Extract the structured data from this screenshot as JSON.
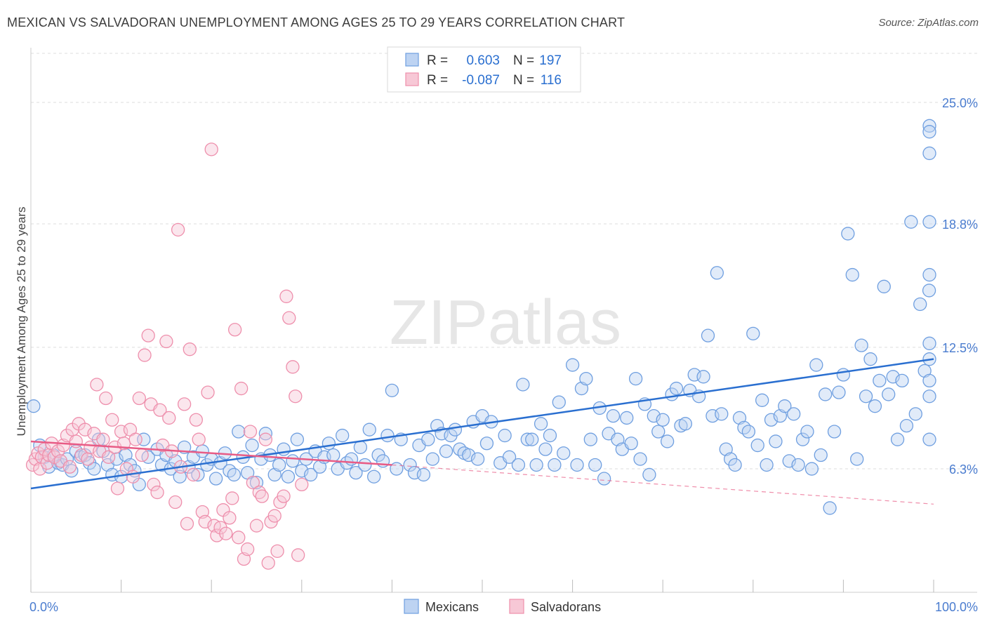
{
  "chart_data": {
    "type": "scatter",
    "title": "MEXICAN VS SALVADORAN UNEMPLOYMENT AMONG AGES 25 TO 29 YEARS CORRELATION CHART",
    "source": "Source: ZipAtlas.com",
    "ylabel": "Unemployment Among Ages 25 to 29 years",
    "xlabel": "",
    "xlim": [
      0,
      100
    ],
    "ylim": [
      0,
      27.5
    ],
    "x_tick_labels": [
      "0.0%",
      "100.0%"
    ],
    "y_ticks": [
      6.3,
      12.5,
      18.8,
      25.0
    ],
    "y_tick_labels": [
      "6.3%",
      "12.5%",
      "18.8%",
      "25.0%"
    ],
    "grid": true,
    "legend_position": "top-center",
    "watermark": "ZIPatlas",
    "stats": [
      {
        "r_label": "R =",
        "r_value": "0.603",
        "n_label": "N =",
        "n_value": "197"
      },
      {
        "r_label": "R =",
        "r_value": "-0.087",
        "n_label": "N =",
        "n_value": "116"
      }
    ],
    "colors": {
      "mexicans": "#6f9fe0",
      "mexicans_fill": "#bdd3f2",
      "mexicans_line": "#2a6fd0",
      "salvadorans": "#ee8fac",
      "salvadorans_fill": "#f7c8d6",
      "salvadorans_line": "#e85c86",
      "axis_text": "#4a7ccf"
    },
    "series": [
      {
        "name": "Mexicans",
        "trend": [
          [
            0,
            5.3
          ],
          [
            100,
            11.9
          ]
        ],
        "points": [
          [
            0.3,
            9.5
          ],
          [
            1,
            7.5
          ],
          [
            1.5,
            6.9
          ],
          [
            2,
            6.4
          ],
          [
            2.5,
            7.0
          ],
          [
            3,
            6.6
          ],
          [
            3.5,
            6.5
          ],
          [
            4,
            6.8
          ],
          [
            4.5,
            6.2
          ],
          [
            5,
            7.2
          ],
          [
            5.5,
            6.9
          ],
          [
            6,
            7.0
          ],
          [
            6.5,
            6.6
          ],
          [
            7,
            6.3
          ],
          [
            7.5,
            7.8
          ],
          [
            8,
            7.2
          ],
          [
            8.5,
            6.5
          ],
          [
            9,
            6.0
          ],
          [
            9.5,
            6.8
          ],
          [
            10,
            5.9
          ],
          [
            10.5,
            7.0
          ],
          [
            11,
            6.5
          ],
          [
            11.5,
            6.2
          ],
          [
            12,
            5.5
          ],
          [
            12.5,
            7.8
          ],
          [
            13,
            6.9
          ],
          [
            14,
            7.3
          ],
          [
            14.5,
            6.5
          ],
          [
            15,
            7.0
          ],
          [
            15.5,
            6.3
          ],
          [
            16,
            6.7
          ],
          [
            16.5,
            5.9
          ],
          [
            17,
            7.4
          ],
          [
            17.5,
            6.4
          ],
          [
            18,
            6.9
          ],
          [
            18.5,
            6.0
          ],
          [
            19,
            7.2
          ],
          [
            19.5,
            6.5
          ],
          [
            20,
            6.8
          ],
          [
            20.5,
            5.8
          ],
          [
            21,
            6.6
          ],
          [
            21.5,
            7.1
          ],
          [
            22,
            6.2
          ],
          [
            22.5,
            6.0
          ],
          [
            23,
            8.2
          ],
          [
            23.5,
            6.9
          ],
          [
            24,
            6.1
          ],
          [
            24.5,
            7.5
          ],
          [
            25,
            5.6
          ],
          [
            25.5,
            6.8
          ],
          [
            26,
            8.1
          ],
          [
            26.5,
            7.0
          ],
          [
            27,
            6.0
          ],
          [
            27.5,
            6.5
          ],
          [
            28,
            7.3
          ],
          [
            28.5,
            5.9
          ],
          [
            29,
            6.7
          ],
          [
            29.5,
            7.8
          ],
          [
            30,
            6.2
          ],
          [
            30.5,
            6.8
          ],
          [
            31,
            6.0
          ],
          [
            31.5,
            7.2
          ],
          [
            32,
            6.4
          ],
          [
            32.5,
            6.9
          ],
          [
            33,
            7.6
          ],
          [
            33.5,
            7.0
          ],
          [
            34,
            6.3
          ],
          [
            34.5,
            8.0
          ],
          [
            35,
            6.6
          ],
          [
            35.5,
            6.8
          ],
          [
            36,
            6.1
          ],
          [
            36.5,
            7.4
          ],
          [
            37,
            6.5
          ],
          [
            37.5,
            8.3
          ],
          [
            38,
            5.9
          ],
          [
            38.5,
            7.0
          ],
          [
            39,
            6.7
          ],
          [
            39.5,
            8.0
          ],
          [
            40,
            10.3
          ],
          [
            40.5,
            6.3
          ],
          [
            41,
            7.8
          ],
          [
            42,
            6.5
          ],
          [
            42.5,
            6.1
          ],
          [
            43,
            7.5
          ],
          [
            43.5,
            6.0
          ],
          [
            44,
            7.8
          ],
          [
            44.5,
            6.8
          ],
          [
            45,
            8.5
          ],
          [
            45.5,
            8.1
          ],
          [
            46,
            7.2
          ],
          [
            46.5,
            8.0
          ],
          [
            47,
            8.3
          ],
          [
            47.5,
            7.3
          ],
          [
            48,
            7.1
          ],
          [
            48.5,
            7.0
          ],
          [
            49,
            8.7
          ],
          [
            49.5,
            6.8
          ],
          [
            50,
            9.0
          ],
          [
            50.5,
            7.6
          ],
          [
            51,
            8.7
          ],
          [
            52,
            6.6
          ],
          [
            52.5,
            8.0
          ],
          [
            53,
            6.9
          ],
          [
            54,
            6.5
          ],
          [
            54.5,
            10.6
          ],
          [
            55,
            7.8
          ],
          [
            55.5,
            7.8
          ],
          [
            56,
            6.5
          ],
          [
            56.5,
            8.6
          ],
          [
            57,
            7.3
          ],
          [
            57.5,
            8.0
          ],
          [
            58,
            6.5
          ],
          [
            58.5,
            9.7
          ],
          [
            59,
            7.1
          ],
          [
            60,
            11.6
          ],
          [
            60.5,
            6.5
          ],
          [
            61,
            10.4
          ],
          [
            61.5,
            10.9
          ],
          [
            62,
            7.8
          ],
          [
            62.5,
            6.5
          ],
          [
            63,
            9.4
          ],
          [
            63.5,
            5.8
          ],
          [
            64,
            8.1
          ],
          [
            64.5,
            9.0
          ],
          [
            65,
            7.8
          ],
          [
            65.5,
            7.3
          ],
          [
            66,
            8.9
          ],
          [
            66.5,
            7.6
          ],
          [
            67,
            10.9
          ],
          [
            67.5,
            6.8
          ],
          [
            68,
            9.6
          ],
          [
            68.5,
            6.0
          ],
          [
            69,
            9.0
          ],
          [
            69.5,
            8.2
          ],
          [
            70,
            8.8
          ],
          [
            70.5,
            7.7
          ],
          [
            71,
            10.1
          ],
          [
            71.5,
            10.4
          ],
          [
            72,
            8.5
          ],
          [
            72.5,
            8.6
          ],
          [
            73,
            10.3
          ],
          [
            73.5,
            11.1
          ],
          [
            74,
            10.0
          ],
          [
            74.5,
            11.0
          ],
          [
            75,
            13.1
          ],
          [
            75.5,
            9.0
          ],
          [
            76,
            16.3
          ],
          [
            76.5,
            9.1
          ],
          [
            77,
            7.3
          ],
          [
            77.5,
            6.8
          ],
          [
            78,
            6.5
          ],
          [
            78.5,
            8.9
          ],
          [
            79,
            8.4
          ],
          [
            79.5,
            8.2
          ],
          [
            80,
            13.2
          ],
          [
            80.5,
            7.5
          ],
          [
            81,
            9.8
          ],
          [
            81.5,
            6.5
          ],
          [
            82,
            8.8
          ],
          [
            82.5,
            7.7
          ],
          [
            83,
            9.0
          ],
          [
            83.5,
            9.5
          ],
          [
            84,
            6.7
          ],
          [
            84.5,
            9.1
          ],
          [
            85,
            6.5
          ],
          [
            85.5,
            7.8
          ],
          [
            86,
            8.2
          ],
          [
            86.5,
            6.3
          ],
          [
            87,
            11.6
          ],
          [
            87.5,
            7.0
          ],
          [
            88,
            10.1
          ],
          [
            88.5,
            4.3
          ],
          [
            89,
            8.2
          ],
          [
            89.5,
            10.2
          ],
          [
            90,
            11.1
          ],
          [
            90.5,
            18.3
          ],
          [
            91,
            16.2
          ],
          [
            91.5,
            6.8
          ],
          [
            92,
            12.6
          ],
          [
            92.5,
            10.0
          ],
          [
            93,
            11.9
          ],
          [
            93.5,
            9.5
          ],
          [
            94,
            10.8
          ],
          [
            94.5,
            15.6
          ],
          [
            95,
            10.1
          ],
          [
            95.5,
            11.0
          ],
          [
            96,
            7.8
          ],
          [
            96.5,
            10.8
          ],
          [
            97,
            8.5
          ],
          [
            97.5,
            18.9
          ],
          [
            98,
            9.1
          ],
          [
            98.5,
            14.7
          ],
          [
            99,
            11.3
          ],
          [
            99.5,
            15.4
          ],
          [
            100,
            16.2
          ],
          [
            100.5,
            11.9
          ],
          [
            101,
            12.7
          ],
          [
            101.5,
            23.8
          ],
          [
            102,
            10.0
          ],
          [
            102.5,
            10.8
          ],
          [
            103,
            18.9
          ],
          [
            103.5,
            22.4
          ],
          [
            104,
            7.8
          ],
          [
            104.5,
            23.5
          ]
        ]
      },
      {
        "name": "Salvadorans",
        "trend": [
          [
            0,
            7.7
          ],
          [
            40,
            6.5
          ]
        ],
        "trend_dashed": [
          [
            40,
            6.5
          ],
          [
            100,
            4.5
          ]
        ],
        "points": [
          [
            0.2,
            6.5
          ],
          [
            0.5,
            6.8
          ],
          [
            0.8,
            7.1
          ],
          [
            1,
            6.3
          ],
          [
            1.2,
            6.9
          ],
          [
            1.5,
            7.3
          ],
          [
            1.8,
            6.6
          ],
          [
            2,
            7.0
          ],
          [
            2.3,
            7.6
          ],
          [
            2.6,
            6.9
          ],
          [
            3,
            7.2
          ],
          [
            3.3,
            6.7
          ],
          [
            3.6,
            7.5
          ],
          [
            4,
            8.0
          ],
          [
            4.3,
            6.4
          ],
          [
            4.6,
            8.3
          ],
          [
            5,
            7.7
          ],
          [
            5.3,
            8.6
          ],
          [
            5.6,
            7.0
          ],
          [
            6,
            8.3
          ],
          [
            6.3,
            6.8
          ],
          [
            6.6,
            7.4
          ],
          [
            7,
            8.1
          ],
          [
            7.3,
            10.6
          ],
          [
            7.6,
            7.2
          ],
          [
            8,
            7.8
          ],
          [
            8.3,
            9.9
          ],
          [
            8.6,
            6.9
          ],
          [
            9,
            8.8
          ],
          [
            9.3,
            7.4
          ],
          [
            9.6,
            5.3
          ],
          [
            10,
            8.2
          ],
          [
            10.3,
            7.6
          ],
          [
            10.6,
            6.3
          ],
          [
            11,
            8.3
          ],
          [
            11.3,
            5.9
          ],
          [
            11.6,
            7.8
          ],
          [
            12,
            9.9
          ],
          [
            12.3,
            7.0
          ],
          [
            12.6,
            12.1
          ],
          [
            13,
            13.1
          ],
          [
            13.3,
            9.6
          ],
          [
            13.6,
            5.5
          ],
          [
            14,
            5.1
          ],
          [
            14.3,
            9.3
          ],
          [
            14.6,
            7.5
          ],
          [
            15,
            12.8
          ],
          [
            15.3,
            8.9
          ],
          [
            15.6,
            7.2
          ],
          [
            16,
            4.6
          ],
          [
            16.3,
            18.5
          ],
          [
            16.6,
            6.4
          ],
          [
            17,
            9.6
          ],
          [
            17.3,
            3.5
          ],
          [
            17.6,
            12.4
          ],
          [
            18,
            6.0
          ],
          [
            18.3,
            8.8
          ],
          [
            18.6,
            7.8
          ],
          [
            19,
            4.1
          ],
          [
            19.3,
            3.6
          ],
          [
            19.6,
            10.2
          ],
          [
            20,
            22.6
          ],
          [
            20.3,
            3.4
          ],
          [
            20.6,
            2.9
          ],
          [
            21,
            3.3
          ],
          [
            21.3,
            4.2
          ],
          [
            21.6,
            3.0
          ],
          [
            22,
            3.8
          ],
          [
            22.3,
            4.8
          ],
          [
            22.6,
            13.4
          ],
          [
            23,
            2.8
          ],
          [
            23.3,
            10.4
          ],
          [
            23.6,
            1.7
          ],
          [
            24,
            2.2
          ],
          [
            24.3,
            8.2
          ],
          [
            24.6,
            5.6
          ],
          [
            25,
            3.4
          ],
          [
            25.3,
            5.1
          ],
          [
            25.6,
            4.9
          ],
          [
            26,
            7.8
          ],
          [
            26.3,
            1.5
          ],
          [
            26.6,
            3.6
          ],
          [
            27,
            3.9
          ],
          [
            27.3,
            2.1
          ],
          [
            27.6,
            4.6
          ],
          [
            28,
            4.9
          ],
          [
            28.3,
            15.1
          ],
          [
            28.6,
            14.0
          ],
          [
            29,
            11.5
          ],
          [
            29.3,
            10.0
          ],
          [
            29.6,
            1.9
          ],
          [
            30,
            5.5
          ]
        ]
      }
    ],
    "legend": [
      {
        "label": "Mexicans"
      },
      {
        "label": "Salvadorans"
      }
    ]
  }
}
